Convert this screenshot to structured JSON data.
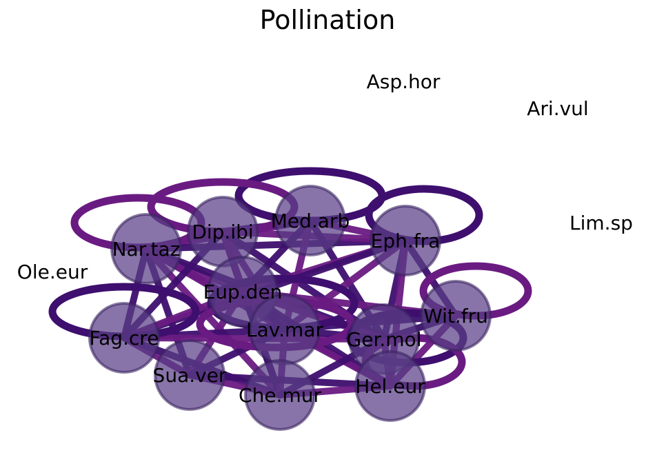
{
  "title": "Pollination",
  "nodes": [
    {
      "id": "Asp.hor",
      "label": "Asp.hor",
      "isolated": true
    },
    {
      "id": "Ari.vul",
      "label": "Ari.vul",
      "isolated": true
    },
    {
      "id": "Lim.sp",
      "label": "Lim.sp",
      "isolated": true
    },
    {
      "id": "Ole.eur",
      "label": "Ole.eur",
      "isolated": true
    },
    {
      "id": "Med.arb",
      "label": "Med.arb",
      "isolated": false
    },
    {
      "id": "Dip.ibi",
      "label": "Dip.ibi",
      "isolated": false
    },
    {
      "id": "Eph.fra",
      "label": "Eph.fra",
      "isolated": false
    },
    {
      "id": "Nar.taz",
      "label": "Nar.taz",
      "isolated": false
    },
    {
      "id": "Eup.den",
      "label": "Eup.den",
      "isolated": false
    },
    {
      "id": "Wit.fru",
      "label": "Wit.fru",
      "isolated": false
    },
    {
      "id": "Fag.cre",
      "label": "Fag.cre",
      "isolated": false
    },
    {
      "id": "Lav.mar",
      "label": "Lav.mar",
      "isolated": false
    },
    {
      "id": "Ger.mol",
      "label": "Ger.mol",
      "isolated": false
    },
    {
      "id": "Sua.ver",
      "label": "Sua.ver",
      "isolated": false
    },
    {
      "id": "Hel.eur",
      "label": "Hel.eur",
      "isolated": false
    },
    {
      "id": "Che.mur",
      "label": "Che.mur",
      "isolated": false
    }
  ],
  "self_loops": [
    "Med.arb",
    "Dip.ibi",
    "Eph.fra",
    "Nar.taz",
    "Eup.den",
    "Wit.fru",
    "Fag.cre",
    "Lav.mar",
    "Ger.mol",
    "Hel.eur"
  ],
  "edges": [
    [
      "Nar.taz",
      "Dip.ibi"
    ],
    [
      "Nar.taz",
      "Med.arb"
    ],
    [
      "Nar.taz",
      "Eph.fra"
    ],
    [
      "Nar.taz",
      "Eup.den"
    ],
    [
      "Nar.taz",
      "Fag.cre"
    ],
    [
      "Nar.taz",
      "Lav.mar"
    ],
    [
      "Nar.taz",
      "Sua.ver"
    ],
    [
      "Nar.taz",
      "Che.mur"
    ],
    [
      "Nar.taz",
      "Ger.mol"
    ],
    [
      "Nar.taz",
      "Hel.eur"
    ],
    [
      "Dip.ibi",
      "Med.arb"
    ],
    [
      "Dip.ibi",
      "Eph.fra"
    ],
    [
      "Dip.ibi",
      "Eup.den"
    ],
    [
      "Dip.ibi",
      "Lav.mar"
    ],
    [
      "Dip.ibi",
      "Fag.cre"
    ],
    [
      "Dip.ibi",
      "Che.mur"
    ],
    [
      "Dip.ibi",
      "Ger.mol"
    ],
    [
      "Med.arb",
      "Eph.fra"
    ],
    [
      "Med.arb",
      "Eup.den"
    ],
    [
      "Med.arb",
      "Lav.mar"
    ],
    [
      "Med.arb",
      "Ger.mol"
    ],
    [
      "Eph.fra",
      "Eup.den"
    ],
    [
      "Eph.fra",
      "Wit.fru"
    ],
    [
      "Eph.fra",
      "Lav.mar"
    ],
    [
      "Eph.fra",
      "Ger.mol"
    ],
    [
      "Eph.fra",
      "Hel.eur"
    ],
    [
      "Eph.fra",
      "Fag.cre"
    ],
    [
      "Eup.den",
      "Fag.cre"
    ],
    [
      "Eup.den",
      "Lav.mar"
    ],
    [
      "Eup.den",
      "Sua.ver"
    ],
    [
      "Eup.den",
      "Che.mur"
    ],
    [
      "Eup.den",
      "Ger.mol"
    ],
    [
      "Eup.den",
      "Hel.eur"
    ],
    [
      "Eup.den",
      "Wit.fru"
    ],
    [
      "Fag.cre",
      "Lav.mar"
    ],
    [
      "Fag.cre",
      "Sua.ver"
    ],
    [
      "Fag.cre",
      "Che.mur"
    ],
    [
      "Fag.cre",
      "Ger.mol"
    ],
    [
      "Lav.mar",
      "Sua.ver"
    ],
    [
      "Lav.mar",
      "Che.mur"
    ],
    [
      "Lav.mar",
      "Ger.mol"
    ],
    [
      "Lav.mar",
      "Hel.eur"
    ],
    [
      "Lav.mar",
      "Wit.fru"
    ],
    [
      "Sua.ver",
      "Che.mur"
    ],
    [
      "Sua.ver",
      "Hel.eur"
    ],
    [
      "Che.mur",
      "Hel.eur"
    ],
    [
      "Che.mur",
      "Ger.mol"
    ],
    [
      "Ger.mol",
      "Hel.eur"
    ],
    [
      "Ger.mol",
      "Wit.fru"
    ],
    [
      "Hel.eur",
      "Wit.fru"
    ]
  ],
  "colors": {
    "node_fill": "#5a3f86",
    "node_stroke": "#3b2560",
    "edge_dark": "#3e0f6e",
    "edge_light": "#6a1b82",
    "text": "#000000"
  }
}
